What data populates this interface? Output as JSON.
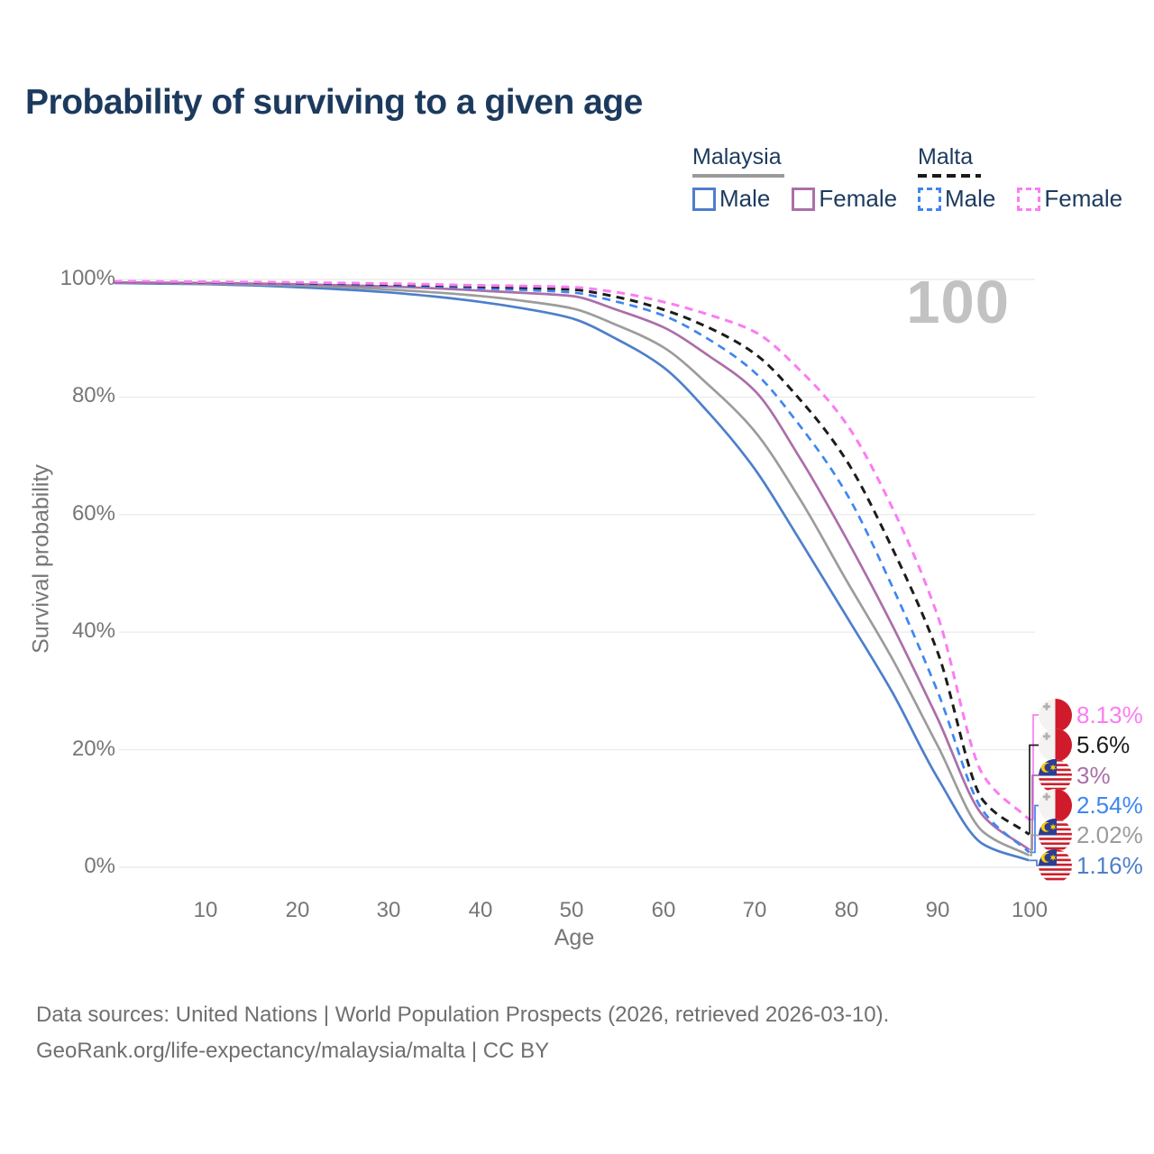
{
  "title": "Probability of surviving to a given age",
  "legend": {
    "groups": [
      {
        "label": "Malaysia",
        "line_style": "solid",
        "header_line_color": "#9a9a9a",
        "items": [
          {
            "label": "Male",
            "color": "#4d7fcb",
            "dashed": false
          },
          {
            "label": "Female",
            "color": "#ab6fa9",
            "dashed": false
          }
        ]
      },
      {
        "label": "Malta",
        "line_style": "dashed",
        "header_line_color": "#1a1a1a",
        "items": [
          {
            "label": "Male",
            "color": "#3e86f0",
            "dashed": true
          },
          {
            "label": "Female",
            "color": "#fb7cf3",
            "dashed": true
          }
        ]
      }
    ]
  },
  "chart_data": {
    "type": "line",
    "title": "Probability of surviving to a given age",
    "xlabel": "Age",
    "ylabel": "Survival probability",
    "xlim": [
      0,
      100
    ],
    "ylim": [
      0,
      100
    ],
    "grid": "horizontal",
    "watermark": "100",
    "x_tick_labels": [
      "10",
      "20",
      "30",
      "40",
      "50",
      "60",
      "70",
      "80",
      "90",
      "100"
    ],
    "x_tick_values": [
      10,
      20,
      30,
      40,
      50,
      60,
      70,
      80,
      90,
      100
    ],
    "y_tick_labels": [
      "100%",
      "80%",
      "60%",
      "40%",
      "20%",
      "0%"
    ],
    "y_tick_values": [
      100,
      80,
      60,
      40,
      20,
      0
    ],
    "x": [
      0,
      5,
      10,
      15,
      20,
      25,
      30,
      35,
      40,
      45,
      50,
      55,
      60,
      65,
      70,
      75,
      80,
      85,
      90,
      95,
      100
    ],
    "series": [
      {
        "name": "Malaysia Male",
        "country": "Malaysia",
        "sex": "Male",
        "color": "#4d7fcb",
        "dashed": false,
        "width": 2.7,
        "values": [
          99.4,
          99.3,
          99.2,
          99.0,
          98.7,
          98.3,
          97.8,
          97.1,
          96.2,
          95.0,
          93.4,
          89.8,
          85.1,
          77.3,
          67.8,
          55.5,
          42.8,
          29.9,
          15.2,
          3.9,
          1.16
        ]
      },
      {
        "name": "Malaysia",
        "country": "Malaysia",
        "sex": "Both",
        "color": "#9c9c9c",
        "dashed": false,
        "width": 2.7,
        "values": [
          99.5,
          99.4,
          99.3,
          99.15,
          99.0,
          98.7,
          98.3,
          97.8,
          97.2,
          96.3,
          95.1,
          92.2,
          88.5,
          82.0,
          74.2,
          62.5,
          48.9,
          35.6,
          20.7,
          6.0,
          2.02
        ]
      },
      {
        "name": "Malaysia Female",
        "country": "Malaysia",
        "sex": "Female",
        "color": "#ab6fa9",
        "dashed": false,
        "width": 2.7,
        "values": [
          99.5,
          99.45,
          99.4,
          99.3,
          99.2,
          99.0,
          98.8,
          98.5,
          98.1,
          97.7,
          97.2,
          94.8,
          91.9,
          87.0,
          81.1,
          69.5,
          56.0,
          41.3,
          25.3,
          8.7,
          3.0
        ]
      },
      {
        "name": "Malta Male",
        "country": "Malta",
        "sex": "Male",
        "color": "#3e86f0",
        "dashed": true,
        "width": 2.7,
        "values": [
          99.6,
          99.55,
          99.5,
          99.4,
          99.3,
          99.15,
          99.0,
          98.8,
          98.5,
          98.2,
          97.8,
          96.2,
          93.9,
          89.8,
          84.2,
          75.0,
          63.7,
          47.9,
          29.9,
          9.5,
          2.54
        ]
      },
      {
        "name": "Malta",
        "country": "Malta",
        "sex": "Both",
        "color": "#1c1c1c",
        "dashed": true,
        "width": 3,
        "values": [
          99.65,
          99.6,
          99.55,
          99.5,
          99.4,
          99.3,
          99.15,
          99.0,
          98.8,
          98.6,
          98.3,
          97.0,
          94.9,
          91.8,
          87.4,
          79.5,
          69.3,
          54.4,
          36.6,
          11.3,
          5.6
        ]
      },
      {
        "name": "Malta Female",
        "country": "Malta",
        "sex": "Female",
        "color": "#fb7cf3",
        "dashed": true,
        "width": 3,
        "values": [
          99.7,
          99.65,
          99.6,
          99.55,
          99.5,
          99.4,
          99.3,
          99.15,
          99.0,
          98.9,
          98.7,
          97.8,
          96.2,
          94.0,
          91.1,
          84.5,
          75.5,
          61.3,
          42.8,
          15.6,
          8.13
        ]
      }
    ],
    "end_labels": [
      {
        "value": "8.13%",
        "series": "Malta Female",
        "flag": "malta"
      },
      {
        "value": "5.6%",
        "series": "Malta",
        "flag": "malta"
      },
      {
        "value": "3%",
        "series": "Malaysia Female",
        "flag": "malaysia"
      },
      {
        "value": "2.54%",
        "series": "Malta Male",
        "flag": "malta"
      },
      {
        "value": "2.02%",
        "series": "Malaysia",
        "flag": "malaysia"
      },
      {
        "value": "1.16%",
        "series": "Malaysia Male",
        "flag": "malaysia"
      }
    ]
  },
  "footer": {
    "line1": "Data sources: United Nations | World Population Prospects (2026, retrieved 2026-03-10).",
    "line2": "GeoRank.org/life-expectancy/malaysia/malta | CC BY"
  },
  "colors": {
    "title_text": "#1c3a5e",
    "axis_text": "#767676",
    "gridline": "#ececec",
    "watermark": "#c2c2c2",
    "footer_text": "#6f6f6f"
  }
}
